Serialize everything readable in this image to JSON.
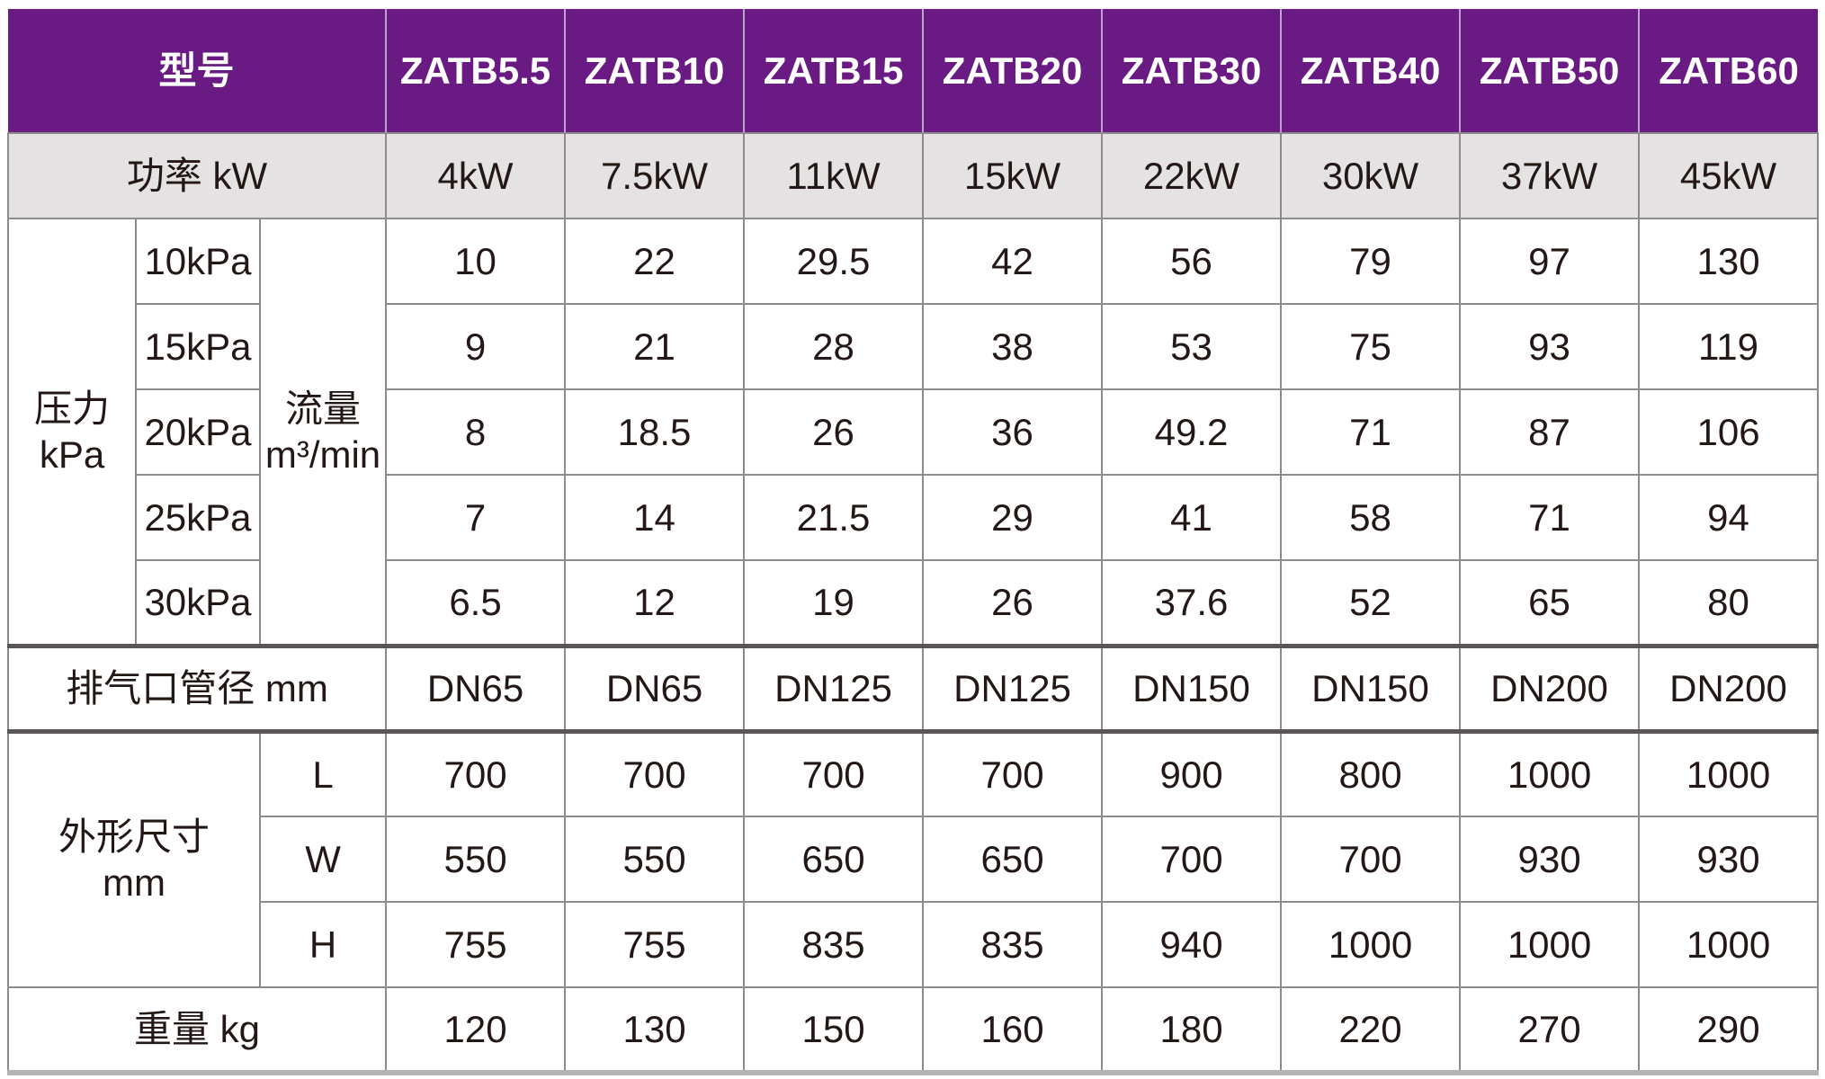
{
  "title_label": "型号",
  "models": [
    "ZATB5.5",
    "ZATB10",
    "ZATB15",
    "ZATB20",
    "ZATB30",
    "ZATB40",
    "ZATB50",
    "ZATB60"
  ],
  "power": {
    "label": "功率 kW",
    "values": [
      "4kW",
      "7.5kW",
      "11kW",
      "15kW",
      "22kW",
      "30kW",
      "37kW",
      "45kW"
    ]
  },
  "pressure": {
    "label_line1": "压力",
    "label_line2": "kPa",
    "flow_label_line1": "流量",
    "flow_label_line2": "m³/min",
    "rows": [
      {
        "level": "10kPa",
        "values": [
          "10",
          "22",
          "29.5",
          "42",
          "56",
          "79",
          "97",
          "130"
        ]
      },
      {
        "level": "15kPa",
        "values": [
          "9",
          "21",
          "28",
          "38",
          "53",
          "75",
          "93",
          "119"
        ]
      },
      {
        "level": "20kPa",
        "values": [
          "8",
          "18.5",
          "26",
          "36",
          "49.2",
          "71",
          "87",
          "106"
        ]
      },
      {
        "level": "25kPa",
        "values": [
          "7",
          "14",
          "21.5",
          "29",
          "41",
          "58",
          "71",
          "94"
        ]
      },
      {
        "level": "30kPa",
        "values": [
          "6.5",
          "12",
          "19",
          "26",
          "37.6",
          "52",
          "65",
          "80"
        ]
      }
    ]
  },
  "outlet": {
    "label": "排气口管径 mm",
    "values": [
      "DN65",
      "DN65",
      "DN125",
      "DN125",
      "DN150",
      "DN150",
      "DN200",
      "DN200"
    ]
  },
  "dimensions": {
    "label_line1": "外形尺寸",
    "label_line2": "mm",
    "rows": [
      {
        "name": "L",
        "values": [
          "700",
          "700",
          "700",
          "700",
          "900",
          "800",
          "1000",
          "1000"
        ]
      },
      {
        "name": "W",
        "values": [
          "550",
          "550",
          "650",
          "650",
          "700",
          "700",
          "930",
          "930"
        ]
      },
      {
        "name": "H",
        "values": [
          "755",
          "755",
          "835",
          "835",
          "940",
          "1000",
          "1000",
          "1000"
        ]
      }
    ]
  },
  "weight": {
    "label": "重量 kg",
    "values": [
      "120",
      "130",
      "150",
      "160",
      "180",
      "220",
      "270",
      "290"
    ]
  },
  "colors": {
    "header_bg": "#6a1b83",
    "header_divider": "#bba4cb",
    "header_text": "#ffffff",
    "subheader_bg": "#e4e2e3",
    "grid_line": "#8f8b8c",
    "section_line": "#5a5657",
    "bottom_edge": "#b5b3b4",
    "body_text": "#231815"
  }
}
